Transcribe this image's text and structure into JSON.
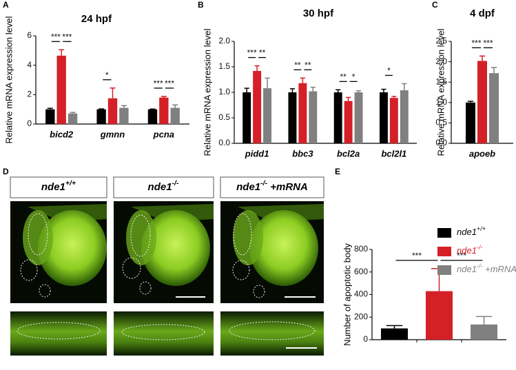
{
  "panels": [
    "A",
    "B",
    "C",
    "D",
    "E"
  ],
  "chart_data": [
    {
      "type": "bar",
      "title": "24 hpf",
      "y_label": "Relative mRNA expression level",
      "categories": [
        "bicd2",
        "gmnn",
        "pcna"
      ],
      "series": [
        {
          "color": "#000000",
          "values": [
            1.0,
            1.0,
            1.0
          ],
          "errors": [
            0.07,
            0.03,
            0.02
          ]
        },
        {
          "color": "#d42027",
          "values": [
            4.65,
            1.75,
            1.8
          ],
          "errors": [
            0.4,
            0.7,
            0.08
          ]
        },
        {
          "color": "#808080",
          "values": [
            0.72,
            1.1,
            1.1
          ],
          "errors": [
            0.07,
            0.15,
            0.2
          ]
        }
      ],
      "ylim": [
        0,
        6
      ],
      "yticks": [
        0,
        2,
        4,
        6
      ],
      "annotations": [
        {
          "text": "***",
          "category": 0,
          "from": 0,
          "to": 1
        },
        {
          "text": "***",
          "category": 0,
          "from": 1,
          "to": 2
        },
        {
          "text": "*",
          "category": 1,
          "from": 0,
          "to": 1
        },
        {
          "text": "***",
          "category": 2,
          "from": 0,
          "to": 1
        },
        {
          "text": "***",
          "category": 2,
          "from": 1,
          "to": 2
        }
      ]
    },
    {
      "type": "bar",
      "title": "30 hpf",
      "y_label": "Relative mRNA expression level",
      "categories": [
        "pidd1",
        "bbc3",
        "bcl2a",
        "bcl2l1"
      ],
      "series": [
        {
          "color": "#000000",
          "values": [
            1.0,
            1.0,
            1.0,
            1.0
          ],
          "errors": [
            0.08,
            0.07,
            0.05,
            0.06
          ]
        },
        {
          "color": "#d42027",
          "values": [
            1.42,
            1.18,
            0.83,
            0.89
          ],
          "errors": [
            0.1,
            0.1,
            0.07,
            0.03
          ]
        },
        {
          "color": "#808080",
          "values": [
            1.08,
            1.02,
            1.0,
            1.04
          ],
          "errors": [
            0.2,
            0.08,
            0.03,
            0.13
          ]
        }
      ],
      "ylim": [
        0,
        2.0
      ],
      "yticks": [
        {
          "value": 0,
          "label": "0.0"
        },
        {
          "value": 0.5,
          "label": "0.5"
        },
        {
          "value": 1,
          "label": "1.0"
        },
        {
          "value": 1.5,
          "label": "1.5"
        },
        {
          "value": 2,
          "label": "2.0"
        }
      ],
      "annotations": [
        {
          "text": "***",
          "category": 0,
          "from": 0,
          "to": 1
        },
        {
          "text": "**",
          "category": 0,
          "from": 1,
          "to": 2
        },
        {
          "text": "**",
          "category": 1,
          "from": 0,
          "to": 1
        },
        {
          "text": "**",
          "category": 1,
          "from": 1,
          "to": 2
        },
        {
          "text": "**",
          "category": 2,
          "from": 0,
          "to": 1
        },
        {
          "text": "*",
          "category": 2,
          "from": 1,
          "to": 2
        },
        {
          "text": "*",
          "category": 3,
          "from": 0,
          "to": 1
        }
      ]
    },
    {
      "type": "bar",
      "title": "4 dpf",
      "y_label": "Relative mRNA expression level",
      "categories": [
        "apoeb"
      ],
      "series": [
        {
          "color": "#000000",
          "values": [
            1.0
          ],
          "errors": [
            0.03
          ]
        },
        {
          "color": "#d42027",
          "values": [
            2.02
          ],
          "errors": [
            0.12
          ]
        },
        {
          "color": "#808080",
          "values": [
            1.72
          ],
          "errors": [
            0.14
          ]
        }
      ],
      "ylim": [
        0,
        2.5
      ],
      "yticks": [
        {
          "value": 0,
          "label": "0.0"
        },
        {
          "value": 0.5,
          "label": "0.5"
        },
        {
          "value": 1,
          "label": "1.0"
        },
        {
          "value": 1.5,
          "label": "1.5"
        },
        {
          "value": 2,
          "label": "2.0"
        },
        {
          "value": 2.5,
          "label": "2.5"
        }
      ],
      "annotations": [
        {
          "text": "***",
          "category": 0,
          "from": 0,
          "to": 1
        },
        {
          "text": "***",
          "category": 0,
          "from": 1,
          "to": 2
        }
      ]
    },
    {
      "type": "bar",
      "y_label": "Number of  apoptotic body",
      "categories": [
        null,
        null,
        null
      ],
      "series": [
        {
          "name": "nde1+/+",
          "color": "#000000",
          "values": [
            100,
            null,
            null
          ],
          "errors": [
            25,
            null,
            null
          ]
        },
        {
          "name": "nde1-/-",
          "color": "#d42027",
          "values": [
            null,
            430,
            null
          ],
          "errors": [
            null,
            200,
            null
          ]
        },
        {
          "name": "nde1-/- +mRNA",
          "color": "#808080",
          "values": [
            null,
            null,
            135
          ],
          "errors": [
            null,
            null,
            70
          ]
        }
      ],
      "ylim": [
        0,
        800
      ],
      "yticks": [
        0,
        200,
        400,
        600,
        800
      ],
      "annotations": [
        {
          "text": "***",
          "from": 0,
          "to": 1
        },
        {
          "text": "***",
          "from": 1,
          "to": 2
        }
      ]
    }
  ],
  "images": {
    "labels": [
      "nde1+/+",
      "nde1-/-",
      "nde1-/- +mRNA"
    ]
  }
}
